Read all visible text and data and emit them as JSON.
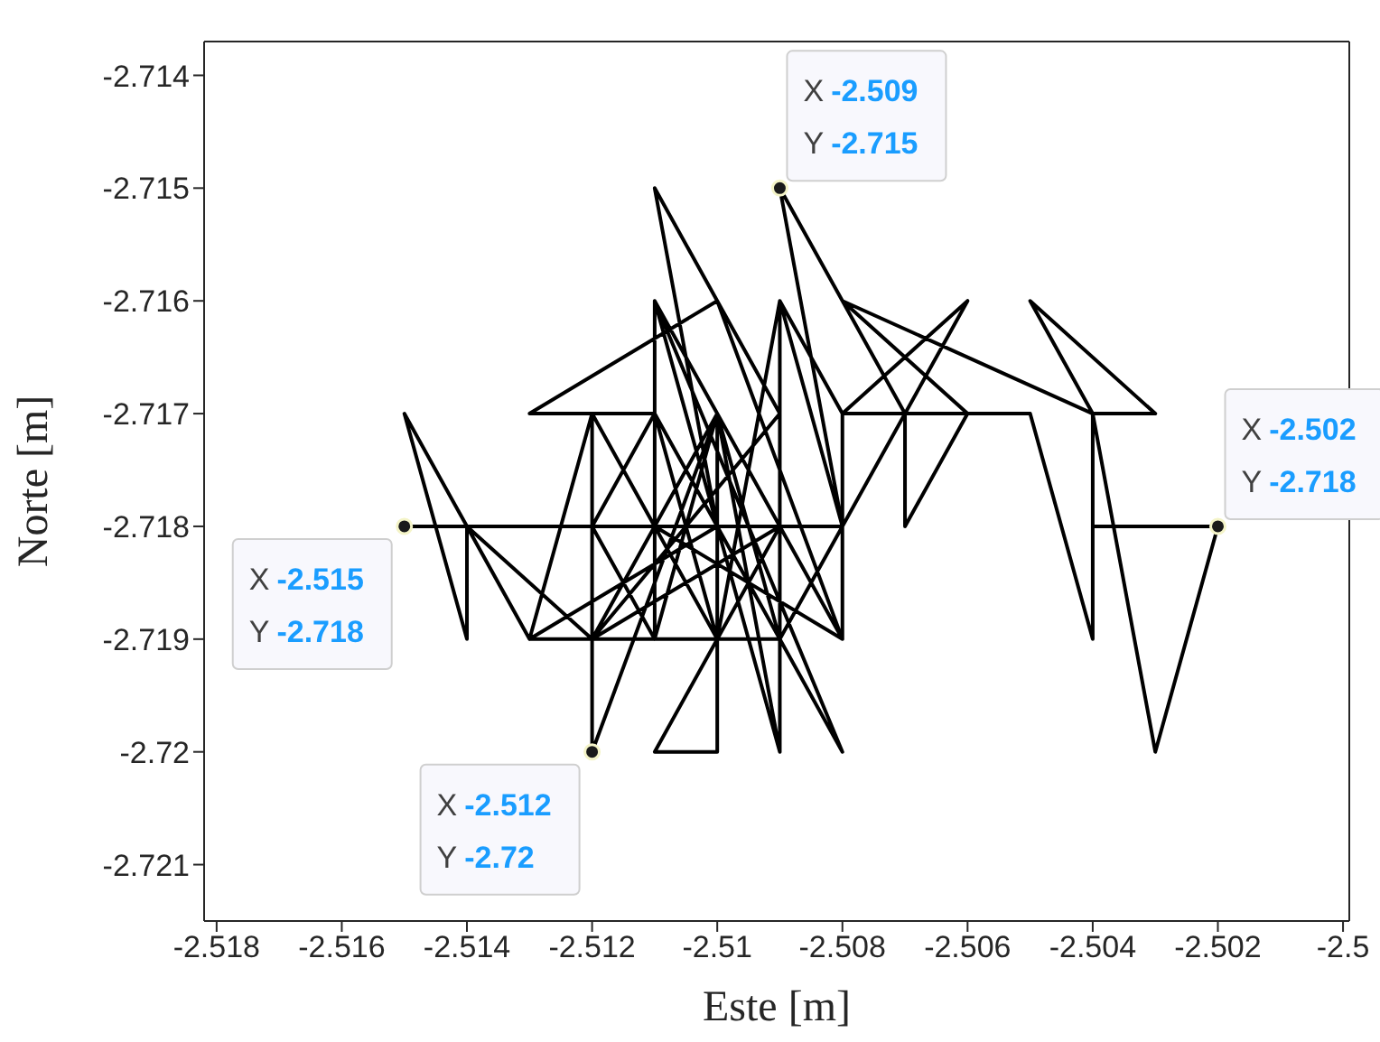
{
  "chart_data": {
    "type": "line",
    "xlabel": "Este [m]",
    "ylabel": "Norte [m]",
    "x": [
      -2.515,
      -2.514,
      -2.514,
      -2.515,
      -2.513,
      -2.512,
      -2.512,
      -2.512,
      -2.511,
      -2.511,
      -2.51,
      -2.51,
      -2.511,
      -2.509,
      -2.509,
      -2.509,
      -2.508,
      -2.508,
      -2.51,
      -2.511,
      -2.51,
      -2.511,
      -2.513,
      -2.51,
      -2.509,
      -2.512,
      -2.51,
      -2.512,
      -2.511,
      -2.508,
      -2.509,
      -2.507,
      -2.507,
      -2.506,
      -2.508,
      -2.504,
      -2.505,
      -2.503,
      -2.504,
      -2.504,
      -2.502,
      -2.503,
      -2.504,
      -2.504,
      -2.505,
      -2.508,
      -2.506,
      -2.509,
      -2.51,
      -2.508,
      -2.511,
      -2.509,
      -2.512,
      -2.514,
      -2.513,
      -2.511,
      -2.51,
      -2.509,
      -2.511,
      -2.508,
      -2.51,
      -2.513,
      -2.514,
      -2.508,
      -2.509,
      -2.51,
      -2.511,
      -2.512,
      -2.511,
      -2.509,
      -2.512,
      -2.51,
      -2.512
    ],
    "series": [
      {
        "color": "#000000",
        "values": [
          -2.718,
          -2.718,
          -2.719,
          -2.717,
          -2.719,
          -2.717,
          -2.72,
          -2.718,
          -2.719,
          -2.716,
          -2.717,
          -2.72,
          -2.72,
          -2.718,
          -2.72,
          -2.716,
          -2.717,
          -2.719,
          -2.716,
          -2.715,
          -2.718,
          -2.717,
          -2.717,
          -2.716,
          -2.717,
          -2.719,
          -2.719,
          -2.717,
          -2.718,
          -2.718,
          -2.715,
          -2.717,
          -2.718,
          -2.717,
          -2.716,
          -2.717,
          -2.716,
          -2.717,
          -2.717,
          -2.718,
          -2.718,
          -2.72,
          -2.717,
          -2.719,
          -2.717,
          -2.717,
          -2.716,
          -2.719,
          -2.717,
          -2.719,
          -2.718,
          -2.718,
          -2.719,
          -2.718,
          -2.719,
          -2.719,
          -2.717,
          -2.72,
          -2.716,
          -2.72,
          -2.718,
          -2.719,
          -2.718,
          -2.718,
          -2.716,
          -2.719,
          -2.717,
          -2.718,
          -2.719,
          -2.719,
          -2.719,
          -2.717,
          -2.72
        ]
      }
    ],
    "xlim": [
      -2.5182,
      -2.4999
    ],
    "ylim": [
      -2.7215,
      -2.7137
    ],
    "xticks": [
      -2.518,
      -2.516,
      -2.514,
      -2.512,
      -2.51,
      -2.508,
      -2.506,
      -2.504,
      -2.502,
      -2.5
    ],
    "yticks": [
      -2.721,
      -2.72,
      -2.719,
      -2.718,
      -2.717,
      -2.716,
      -2.715,
      -2.714
    ],
    "grid": false,
    "legend": false,
    "marker": "none",
    "line_style": "solid",
    "annotations": [
      {
        "text": "X -2.509\nY -2.715",
        "x": -2.509,
        "y": -2.715
      },
      {
        "text": "X -2.502\nY -2.718",
        "x": -2.502,
        "y": -2.718
      },
      {
        "text": "X -2.515\nY -2.718",
        "x": -2.515,
        "y": -2.718
      },
      {
        "text": "X -2.512\nY -2.72",
        "x": -2.512,
        "y": -2.72
      }
    ]
  }
}
